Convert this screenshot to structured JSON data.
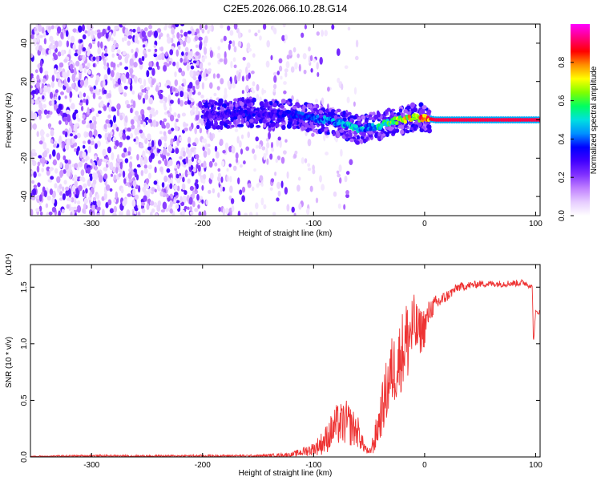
{
  "title": "C2E5.2026.066.10.28.G14",
  "chart_data": [
    {
      "type": "heatmap",
      "title": "C2E5.2026.066.10.28.G14",
      "xlabel": "Height of straight line (km)",
      "ylabel": "Frequency (Hz)",
      "xlim": [
        -355,
        104
      ],
      "ylim": [
        -50,
        50
      ],
      "xticks": [
        -300,
        -200,
        -100,
        0,
        100
      ],
      "yticks": [
        -40,
        -20,
        0,
        20,
        40
      ],
      "colorbar": {
        "label": "Normalized spectral amplitude",
        "range": [
          0,
          1
        ],
        "ticks": [
          0.0,
          0.2,
          0.4,
          0.6,
          0.8
        ],
        "tick_labels": [
          "0.0",
          "0.2",
          "0.4",
          "0.6",
          "0.8"
        ],
        "colors": [
          "#ffffff",
          "#e6ccff",
          "#c080ff",
          "#8030ff",
          "#4000ff",
          "#0000ff",
          "#0090ff",
          "#00e0e0",
          "#00ff60",
          "#80ff00",
          "#ffff00",
          "#ff9000",
          "#ff0000",
          "#ff0080",
          "#ff00ff"
        ]
      },
      "ridge": {
        "x": [
          -200,
          -180,
          -160,
          -140,
          -120,
          -100,
          -90,
          -80,
          -70,
          -60,
          -50,
          -40,
          -30,
          -20,
          -10,
          0,
          10,
          50,
          100
        ],
        "freq": [
          3,
          3,
          4,
          3,
          3,
          1,
          0,
          -1,
          -3,
          -5,
          -4,
          -3,
          -1,
          0,
          1,
          1,
          0,
          0,
          0
        ],
        "peak_amplitude": [
          0.3,
          0.3,
          0.35,
          0.3,
          0.35,
          0.4,
          0.45,
          0.45,
          0.5,
          0.5,
          0.45,
          0.55,
          0.6,
          0.75,
          0.8,
          0.85,
          0.9,
          0.9,
          0.9
        ]
      },
      "background_noise": {
        "x_range_dense": [
          -355,
          -200
        ],
        "x_range_sparse": [
          -200,
          -60
        ],
        "freq_spread": [
          -50,
          50
        ]
      }
    },
    {
      "type": "line",
      "title": "",
      "xlabel": "Height of straight line (km)",
      "ylabel": "SNR (10 * v/v)",
      "scale_label": "(x10⁴)",
      "xlim": [
        -355,
        104
      ],
      "ylim": [
        0,
        1.7
      ],
      "xticks": [
        -300,
        -200,
        -100,
        0,
        100
      ],
      "yticks": [
        0.0,
        0.5,
        1.0,
        1.5
      ],
      "ytick_labels": [
        "0.0",
        "0.5",
        "1.0",
        "1.5"
      ],
      "series": [
        {
          "name": "SNR",
          "color": "#ee3333",
          "x": [
            -355,
            -300,
            -250,
            -200,
            -150,
            -120,
            -100,
            -90,
            -80,
            -70,
            -60,
            -55,
            -50,
            -45,
            -40,
            -35,
            -30,
            -25,
            -20,
            -15,
            -10,
            -5,
            0,
            5,
            10,
            20,
            30,
            50,
            70,
            90,
            97,
            98,
            100,
            104
          ],
          "values": [
            0.005,
            0.01,
            0.008,
            0.01,
            0.01,
            0.02,
            0.07,
            0.14,
            0.28,
            0.3,
            0.22,
            0.1,
            0.03,
            0.15,
            0.35,
            0.55,
            0.75,
            0.8,
            0.95,
            1.05,
            1.15,
            1.1,
            1.15,
            1.3,
            1.35,
            1.42,
            1.5,
            1.53,
            1.53,
            1.54,
            1.5,
            1.0,
            1.28,
            1.28
          ],
          "noise_amplitude": [
            0.005,
            0.01,
            0.008,
            0.01,
            0.01,
            0.02,
            0.06,
            0.12,
            0.18,
            0.2,
            0.14,
            0.06,
            0.02,
            0.12,
            0.2,
            0.28,
            0.32,
            0.32,
            0.35,
            0.4,
            0.3,
            0.22,
            0.18,
            0.1,
            0.08,
            0.05,
            0.04,
            0.03,
            0.03,
            0.03,
            0.02,
            0.0,
            0.02,
            0.02
          ]
        }
      ]
    }
  ]
}
